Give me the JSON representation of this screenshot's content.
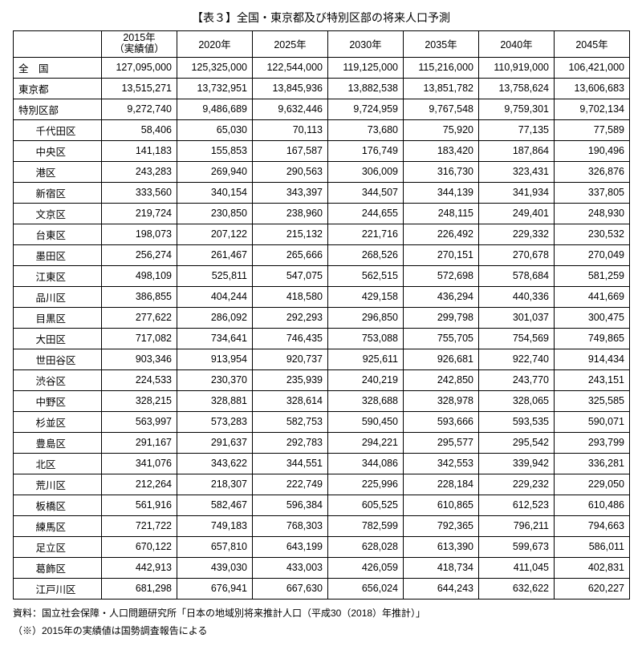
{
  "title": "【表３】全国・東京都及び特別区部の将来人口予測",
  "header": {
    "blank": "",
    "years": [
      "2015年\n（実績値）",
      "2020年",
      "2025年",
      "2030年",
      "2035年",
      "2040年",
      "2045年"
    ]
  },
  "mainRows": [
    {
      "label": "全　国",
      "values": [
        "127,095,000",
        "125,325,000",
        "122,544,000",
        "119,125,000",
        "115,216,000",
        "110,919,000",
        "106,421,000"
      ]
    },
    {
      "label": "東京都",
      "values": [
        "13,515,271",
        "13,732,951",
        "13,845,936",
        "13,882,538",
        "13,851,782",
        "13,758,624",
        "13,606,683"
      ]
    },
    {
      "label": "特別区部",
      "values": [
        "9,272,740",
        "9,486,689",
        "9,632,446",
        "9,724,959",
        "9,767,548",
        "9,759,301",
        "9,702,134"
      ]
    }
  ],
  "wardRows": [
    {
      "label": "千代田区",
      "values": [
        "58,406",
        "65,030",
        "70,113",
        "73,680",
        "75,920",
        "77,135",
        "77,589"
      ]
    },
    {
      "label": "中央区",
      "values": [
        "141,183",
        "155,853",
        "167,587",
        "176,749",
        "183,420",
        "187,864",
        "190,496"
      ]
    },
    {
      "label": "港区",
      "values": [
        "243,283",
        "269,940",
        "290,563",
        "306,009",
        "316,730",
        "323,431",
        "326,876"
      ]
    },
    {
      "label": "新宿区",
      "values": [
        "333,560",
        "340,154",
        "343,397",
        "344,507",
        "344,139",
        "341,934",
        "337,805"
      ]
    },
    {
      "label": "文京区",
      "values": [
        "219,724",
        "230,850",
        "238,960",
        "244,655",
        "248,115",
        "249,401",
        "248,930"
      ]
    },
    {
      "label": "台東区",
      "values": [
        "198,073",
        "207,122",
        "215,132",
        "221,716",
        "226,492",
        "229,332",
        "230,532"
      ]
    },
    {
      "label": "墨田区",
      "values": [
        "256,274",
        "261,467",
        "265,666",
        "268,526",
        "270,151",
        "270,678",
        "270,049"
      ]
    },
    {
      "label": "江東区",
      "values": [
        "498,109",
        "525,811",
        "547,075",
        "562,515",
        "572,698",
        "578,684",
        "581,259"
      ]
    },
    {
      "label": "品川区",
      "values": [
        "386,855",
        "404,244",
        "418,580",
        "429,158",
        "436,294",
        "440,336",
        "441,669"
      ]
    },
    {
      "label": "目黒区",
      "values": [
        "277,622",
        "286,092",
        "292,293",
        "296,850",
        "299,798",
        "301,037",
        "300,475"
      ]
    },
    {
      "label": "大田区",
      "values": [
        "717,082",
        "734,641",
        "746,435",
        "753,088",
        "755,705",
        "754,569",
        "749,865"
      ]
    },
    {
      "label": "世田谷区",
      "values": [
        "903,346",
        "913,954",
        "920,737",
        "925,611",
        "926,681",
        "922,740",
        "914,434"
      ]
    },
    {
      "label": "渋谷区",
      "values": [
        "224,533",
        "230,370",
        "235,939",
        "240,219",
        "242,850",
        "243,770",
        "243,151"
      ]
    },
    {
      "label": "中野区",
      "values": [
        "328,215",
        "328,881",
        "328,614",
        "328,688",
        "328,978",
        "328,065",
        "325,585"
      ]
    },
    {
      "label": "杉並区",
      "values": [
        "563,997",
        "573,283",
        "582,753",
        "590,450",
        "593,666",
        "593,535",
        "590,071"
      ]
    },
    {
      "label": "豊島区",
      "values": [
        "291,167",
        "291,637",
        "292,783",
        "294,221",
        "295,577",
        "295,542",
        "293,799"
      ]
    },
    {
      "label": "北区",
      "values": [
        "341,076",
        "343,622",
        "344,551",
        "344,086",
        "342,553",
        "339,942",
        "336,281"
      ]
    },
    {
      "label": "荒川区",
      "values": [
        "212,264",
        "218,307",
        "222,749",
        "225,996",
        "228,184",
        "229,232",
        "229,050"
      ]
    },
    {
      "label": "板橋区",
      "values": [
        "561,916",
        "582,467",
        "596,384",
        "605,525",
        "610,865",
        "612,523",
        "610,486"
      ]
    },
    {
      "label": "練馬区",
      "values": [
        "721,722",
        "749,183",
        "768,303",
        "782,599",
        "792,365",
        "796,211",
        "794,663"
      ]
    },
    {
      "label": "足立区",
      "values": [
        "670,122",
        "657,810",
        "643,199",
        "628,028",
        "613,390",
        "599,673",
        "586,011"
      ]
    },
    {
      "label": "葛飾区",
      "values": [
        "442,913",
        "439,030",
        "433,003",
        "426,059",
        "418,734",
        "411,045",
        "402,831"
      ]
    },
    {
      "label": "江戸川区",
      "values": [
        "681,298",
        "676,941",
        "667,630",
        "656,024",
        "644,243",
        "632,622",
        "620,227"
      ]
    }
  ],
  "footnotes": [
    "資料：国立社会保障・人口問題研究所「日本の地域別将来推計人口（平成30（2018）年推計）」",
    "（※）2015年の実績値は国勢調査報告による"
  ],
  "style": {
    "background": "#ffffff",
    "border": "#000000",
    "text": "#000000"
  }
}
